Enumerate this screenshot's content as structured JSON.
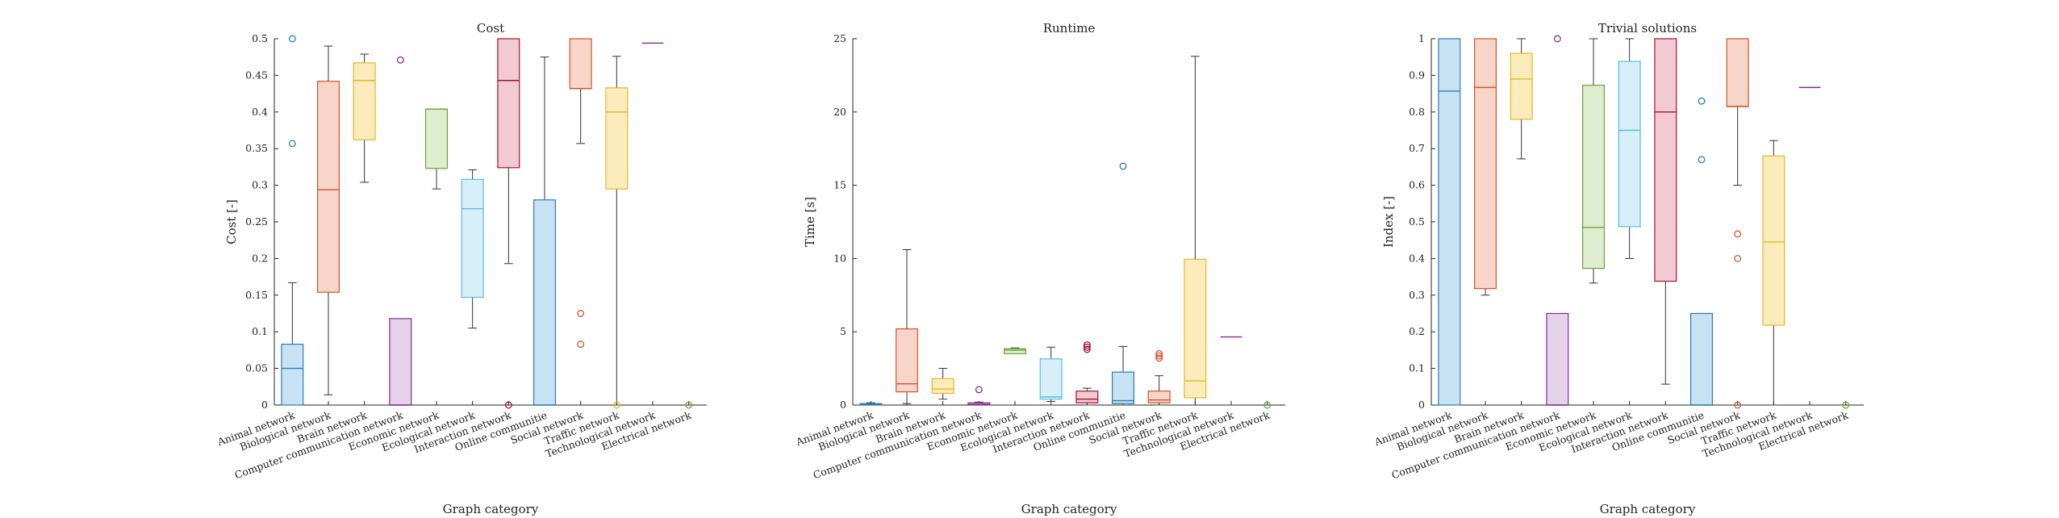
{
  "chart_data": [
    {
      "type": "box",
      "title": "Cost",
      "xlabel": "Graph category",
      "ylabel": "Cost [-]",
      "ylim": [
        0,
        0.5
      ],
      "yticks": [
        0,
        0.05,
        0.1,
        0.15,
        0.2,
        0.25,
        0.3,
        0.35,
        0.4,
        0.45,
        0.5
      ],
      "ytick_labels": [
        "0",
        "0.05",
        "0.1",
        "0.15",
        "0.2",
        "0.25",
        "0.3",
        "0.35",
        "0.4",
        "0.45",
        "0.5"
      ],
      "categories": [
        "Animal network",
        "Biological network",
        "Brain network",
        "Computer communication network",
        "Economic network",
        "Ecological network",
        "Interaction network",
        "Online communitie",
        "Social network",
        "Traffic network",
        "Technological network",
        "Electrical network"
      ],
      "boxes": [
        {
          "q1": 0,
          "median": 0.05,
          "q3": 0.083,
          "whisker_low": 0,
          "whisker_high": 0.167,
          "outliers": [
            0.357,
            0.5
          ]
        },
        {
          "q1": 0.154,
          "median": 0.294,
          "q3": 0.442,
          "whisker_low": 0.014,
          "whisker_high": 0.49,
          "outliers": []
        },
        {
          "q1": 0.362,
          "median": 0.443,
          "q3": 0.467,
          "whisker_low": 0.304,
          "whisker_high": 0.479,
          "outliers": []
        },
        {
          "q1": 0,
          "median": 0,
          "q3": 0.118,
          "whisker_low": 0,
          "whisker_high": 0.118,
          "outliers": [
            0.471
          ]
        },
        {
          "q1": 0.323,
          "median": 0.404,
          "q3": 0.404,
          "whisker_low": 0.295,
          "whisker_high": 0.404,
          "outliers": []
        },
        {
          "q1": 0.147,
          "median": 0.268,
          "q3": 0.308,
          "whisker_low": 0.105,
          "whisker_high": 0.321,
          "outliers": []
        },
        {
          "q1": 0.324,
          "median": 0.443,
          "q3": 0.5,
          "whisker_low": 0.193,
          "whisker_high": 0.5,
          "outliers": [
            0
          ]
        },
        {
          "q1": 0,
          "median": 0,
          "q3": 0.28,
          "whisker_low": 0,
          "whisker_high": 0.475,
          "outliers": []
        },
        {
          "q1": 0.432,
          "median": 0.432,
          "q3": 0.5,
          "whisker_low": 0.357,
          "whisker_high": 0.5,
          "outliers": [
            0.125,
            0.083
          ]
        },
        {
          "q1": 0.295,
          "median": 0.4,
          "q3": 0.433,
          "whisker_low": 0,
          "whisker_high": 0.476,
          "outliers": [
            0
          ]
        },
        {
          "q1": 0.494,
          "median": 0.494,
          "q3": 0.494,
          "whisker_low": 0.494,
          "whisker_high": 0.494,
          "outliers": []
        },
        {
          "q1": 0,
          "median": 0,
          "q3": 0,
          "whisker_low": 0,
          "whisker_high": 0,
          "outliers": [
            0
          ]
        }
      ]
    },
    {
      "type": "box",
      "title": "Runtime",
      "xlabel": "Graph category",
      "ylabel": "Time [s]",
      "ylim": [
        0,
        25
      ],
      "yticks": [
        0,
        5,
        10,
        15,
        20,
        25
      ],
      "ytick_labels": [
        "0",
        "5",
        "10",
        "15",
        "20",
        "25"
      ],
      "categories": [
        "Animal network",
        "Biological network",
        "Brain network",
        "Computer communication network",
        "Economic network",
        "Ecological network",
        "Interaction network",
        "Online communitie",
        "Social network",
        "Traffic network",
        "Technological network",
        "Electrical network"
      ],
      "boxes": [
        {
          "q1": 0.02,
          "median": 0.05,
          "q3": 0.1,
          "whisker_low": 0,
          "whisker_high": 0.15,
          "outliers": []
        },
        {
          "q1": 0.9,
          "median": 1.45,
          "q3": 5.2,
          "whisker_low": 0.1,
          "whisker_high": 10.6,
          "outliers": []
        },
        {
          "q1": 0.8,
          "median": 1.1,
          "q3": 1.8,
          "whisker_low": 0.4,
          "whisker_high": 2.5,
          "outliers": []
        },
        {
          "q1": 0,
          "median": 0.05,
          "q3": 0.15,
          "whisker_low": 0,
          "whisker_high": 0.2,
          "outliers": [
            1.05
          ]
        },
        {
          "q1": 3.5,
          "median": 3.75,
          "q3": 3.85,
          "whisker_low": 3.5,
          "whisker_high": 3.9,
          "outliers": []
        },
        {
          "q1": 0.4,
          "median": 0.55,
          "q3": 3.15,
          "whisker_low": 0.25,
          "whisker_high": 3.95,
          "outliers": []
        },
        {
          "q1": 0.15,
          "median": 0.4,
          "q3": 0.95,
          "whisker_low": 0,
          "whisker_high": 1.15,
          "outliers": [
            3.8,
            3.95,
            4.1
          ]
        },
        {
          "q1": 0.1,
          "median": 0.3,
          "q3": 2.25,
          "whisker_low": 0,
          "whisker_high": 4.0,
          "outliers": [
            16.3
          ]
        },
        {
          "q1": 0.15,
          "median": 0.35,
          "q3": 0.95,
          "whisker_low": 0,
          "whisker_high": 2.0,
          "outliers": [
            3.2,
            3.35,
            3.5
          ]
        },
        {
          "q1": 0.5,
          "median": 1.65,
          "q3": 9.95,
          "whisker_low": 0,
          "whisker_high": 23.8,
          "outliers": []
        },
        {
          "q1": 4.65,
          "median": 4.65,
          "q3": 4.65,
          "whisker_low": 4.65,
          "whisker_high": 4.65,
          "outliers": []
        },
        {
          "q1": 0,
          "median": 0,
          "q3": 0,
          "whisker_low": 0,
          "whisker_high": 0,
          "outliers": [
            0
          ]
        }
      ]
    },
    {
      "type": "box",
      "title": "Trivial solutions",
      "xlabel": "Graph category",
      "ylabel": "Index [-]",
      "ylim": [
        0,
        1
      ],
      "yticks": [
        0,
        0.1,
        0.2,
        0.3,
        0.4,
        0.5,
        0.6,
        0.7,
        0.8,
        0.9,
        1
      ],
      "ytick_labels": [
        "0",
        "0.1",
        "0.2",
        "0.3",
        "0.4",
        "0.5",
        "0.6",
        "0.7",
        "0.8",
        "0.9",
        "1"
      ],
      "categories": [
        "Animal network",
        "Biological network",
        "Brain network",
        "Computer communication network",
        "Economic network",
        "Ecological network",
        "Interaction network",
        "Online communitie",
        "Social network",
        "Traffic network",
        "Technological network",
        "Electrical network"
      ],
      "boxes": [
        {
          "q1": 0,
          "median": 0.857,
          "q3": 1,
          "whisker_low": 0,
          "whisker_high": 1,
          "outliers": []
        },
        {
          "q1": 0.318,
          "median": 0.867,
          "q3": 1,
          "whisker_low": 0.3,
          "whisker_high": 1,
          "outliers": []
        },
        {
          "q1": 0.78,
          "median": 0.89,
          "q3": 0.96,
          "whisker_low": 0.672,
          "whisker_high": 1,
          "outliers": []
        },
        {
          "q1": 0,
          "median": 0,
          "q3": 0.25,
          "whisker_low": 0,
          "whisker_high": 0.25,
          "outliers": [
            1
          ]
        },
        {
          "q1": 0.373,
          "median": 0.485,
          "q3": 0.873,
          "whisker_low": 0.333,
          "whisker_high": 1,
          "outliers": []
        },
        {
          "q1": 0.487,
          "median": 0.75,
          "q3": 0.938,
          "whisker_low": 0.4,
          "whisker_high": 1,
          "outliers": []
        },
        {
          "q1": 0.338,
          "median": 0.8,
          "q3": 1,
          "whisker_low": 0.057,
          "whisker_high": 1,
          "outliers": []
        },
        {
          "q1": 0,
          "median": 0,
          "q3": 0.25,
          "whisker_low": 0,
          "whisker_high": 0.25,
          "outliers": [
            0.83,
            0.67
          ]
        },
        {
          "q1": 0.815,
          "median": 0.815,
          "q3": 1,
          "whisker_low": 0.6,
          "whisker_high": 1,
          "outliers": [
            0.467,
            0.4,
            0
          ]
        },
        {
          "q1": 0.218,
          "median": 0.445,
          "q3": 0.68,
          "whisker_low": 0,
          "whisker_high": 0.722,
          "outliers": []
        },
        {
          "q1": 0.867,
          "median": 0.867,
          "q3": 0.867,
          "whisker_low": 0.867,
          "whisker_high": 0.867,
          "outliers": []
        },
        {
          "q1": 0,
          "median": 0,
          "q3": 0,
          "whisker_low": 0,
          "whisker_high": 0,
          "outliers": [
            0
          ]
        }
      ]
    }
  ],
  "colors": {
    "box_edge": [
      "#2b7bba",
      "#d2542d",
      "#e7b62a",
      "#7e2f8e",
      "#6fa33a",
      "#5bbde0",
      "#a2142f",
      "#2b7bba",
      "#d2542d",
      "#e7b62a",
      "#7e2f8e",
      "#6fa33a"
    ],
    "box_fill": [
      "#c7e3f3",
      "#f7d5c8",
      "#fcecbc",
      "#e5d2ea",
      "#deedd0",
      "#d6eff8",
      "#f1cad3",
      "#c7e3f3",
      "#f7d5c8",
      "#fcecbc",
      "#e5d2ea",
      "#deedd0"
    ],
    "whisker": "#333333",
    "axis": "#262626"
  }
}
